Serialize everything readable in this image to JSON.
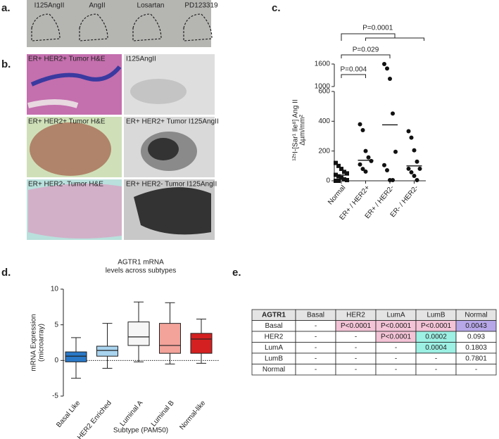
{
  "panel_a": {
    "letter": "a.",
    "labels": [
      "I125AngII",
      "AngII",
      "Losartan",
      "PD123319"
    ]
  },
  "panel_b": {
    "letter": "b.",
    "captions": [
      "ER+ HER2+ Tumor H&E",
      "I125AngII",
      "ER+ HER2+ Tumor H&E",
      "ER+ HER2+ Tumor I125AngII",
      "ER+ HER2- Tumor H&E",
      "ER+ HER2- Tumor I125AngII"
    ]
  },
  "chart_data": [
    {
      "type": "strip",
      "panel": "c.",
      "y_label": [
        "¹²⁵I-[Sar¹ Ile⁸] Ang II",
        "Δµm/mm²"
      ],
      "categories": [
        "Normal",
        "ER+ / HER2+",
        "ER+ / HER2-",
        "ER- / HER2-"
      ],
      "markers": [
        "square",
        "circle",
        "circle",
        "circle"
      ],
      "values": [
        [
          120,
          100,
          80,
          60,
          50,
          40,
          30,
          20,
          10,
          5,
          0,
          0
        ],
        [
          380,
          340,
          200,
          157,
          133,
          110,
          80,
          62
        ],
        [
          1600,
          1480,
          1206,
          452,
          195,
          105,
          71,
          5,
          5
        ],
        [
          333,
          290,
          205,
          129,
          81,
          81,
          57,
          33,
          5
        ]
      ],
      "means": [
        38,
        138,
        376,
        100
      ],
      "ylim": [
        0,
        1600
      ],
      "ybreak": [
        600,
        1000
      ],
      "yticks": [
        0,
        200,
        400,
        600,
        1000,
        1600
      ],
      "annotations": [
        {
          "text": "P=0.004",
          "from": 0,
          "to": 1
        },
        {
          "text": "P=0.029",
          "from": 0,
          "to": 2
        },
        {
          "text": "P=0.0001",
          "from": 0,
          "to": 3
        }
      ],
      "color": "#111111"
    },
    {
      "type": "box",
      "panel": "d.",
      "title": [
        "AGTR1 mRNA",
        "levels across subtypes"
      ],
      "y_label": [
        "mRNA Expression",
        "(microarray)"
      ],
      "x_label": "Subtype (PAM50)",
      "categories": [
        "Basal Like",
        "HER2 Enriched",
        "Luminal A",
        "Luminal B",
        "Normal-like"
      ],
      "min": [
        -2.5,
        -1.1,
        -0.2,
        -0.5,
        -0.4
      ],
      "q1": [
        -0.2,
        0.6,
        2.1,
        1.0,
        1.0
      ],
      "median": [
        0.6,
        1.4,
        3.3,
        2.1,
        3.0
      ],
      "q3": [
        1.2,
        2.0,
        5.4,
        5.2,
        3.8
      ],
      "max": [
        3.2,
        5.2,
        8.2,
        8.1,
        5.8
      ],
      "colors": [
        "#2a78c8",
        "#a9d4f0",
        "#f6f6f6",
        "#f3a39a",
        "#d42020"
      ],
      "ylim": [
        -5,
        10
      ],
      "yticks": [
        -5,
        0,
        5,
        10
      ],
      "reference_line": 0
    }
  ],
  "panel_e": {
    "letter": "e.",
    "header": [
      "AGTR1",
      "Basal",
      "HER2",
      "LumA",
      "LumB",
      "Normal"
    ],
    "rows": [
      [
        "Basal",
        "-",
        "P<0.0001",
        "P<0.0001",
        "P<0.0001",
        "0.0043"
      ],
      [
        "HER2",
        "-",
        "-",
        "P<0.0001",
        "0.0002",
        "0.093"
      ],
      [
        "LumA",
        "-",
        "-",
        "-",
        "0.0004",
        "0.1803"
      ],
      [
        "LumB",
        "-",
        "-",
        "-",
        "-",
        "0.7801"
      ],
      [
        "Normal",
        "-",
        "-",
        "-",
        "-",
        "-"
      ]
    ],
    "highlights": [
      {
        "row": 0,
        "col": 2,
        "color": "#f3c3d6"
      },
      {
        "row": 0,
        "col": 3,
        "color": "#f3c3d6"
      },
      {
        "row": 0,
        "col": 4,
        "color": "#f3c3d6"
      },
      {
        "row": 0,
        "col": 5,
        "color": "#b7a7e8"
      },
      {
        "row": 1,
        "col": 3,
        "color": "#f3c3d6"
      },
      {
        "row": 1,
        "col": 4,
        "color": "#9df0e4"
      },
      {
        "row": 2,
        "col": 4,
        "color": "#9df0e4"
      }
    ]
  }
}
